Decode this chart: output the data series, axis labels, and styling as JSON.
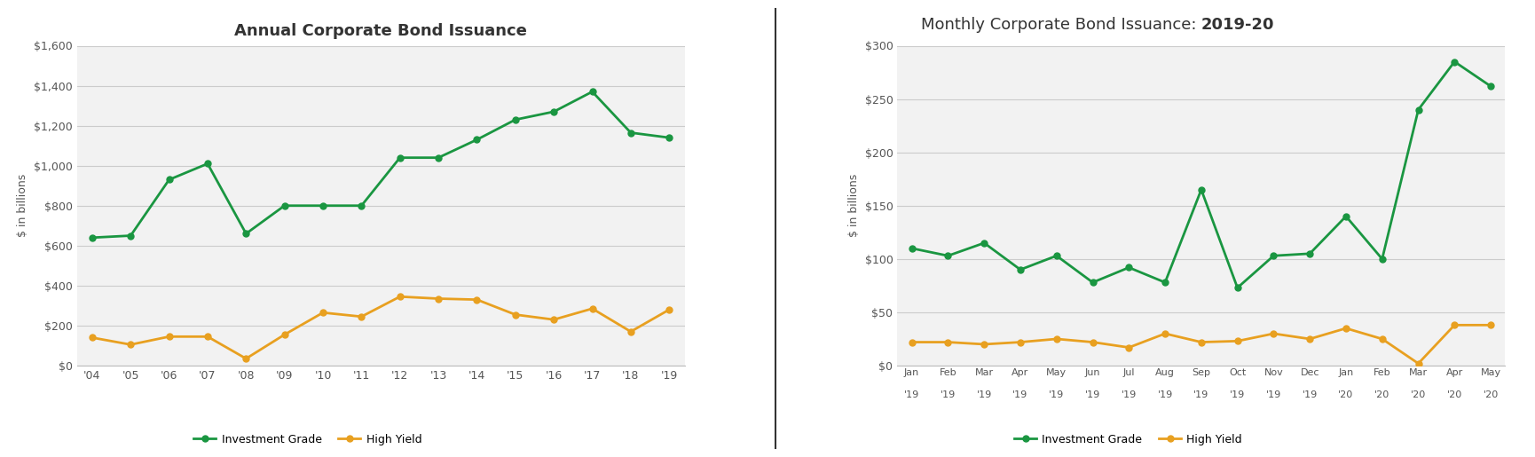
{
  "chart1": {
    "title": "Annual Corporate Bond Issuance",
    "years": [
      "'04",
      "'05",
      "'06",
      "'07",
      "'08",
      "'09",
      "'10",
      "'11",
      "'12",
      "'13",
      "'14",
      "'15",
      "'16",
      "'17",
      "'18",
      "'19"
    ],
    "investment_grade": [
      640,
      650,
      930,
      1010,
      660,
      800,
      800,
      800,
      1040,
      1040,
      1130,
      1230,
      1270,
      1370,
      1165,
      1140
    ],
    "high_yield": [
      140,
      105,
      145,
      145,
      35,
      155,
      265,
      245,
      345,
      335,
      330,
      255,
      230,
      285,
      170,
      280
    ],
    "ylim": [
      0,
      1600
    ],
    "yticks": [
      0,
      200,
      400,
      600,
      800,
      1000,
      1200,
      1400,
      1600
    ],
    "ylabel": "$ in billions"
  },
  "chart2": {
    "title_normal": "Monthly Corporate Bond Issuance: ",
    "title_bold": "2019-20",
    "month_labels": [
      "Jan",
      "Feb",
      "Mar",
      "Apr",
      "May",
      "Jun",
      "Jul",
      "Aug",
      "Sep",
      "Oct",
      "Nov",
      "Dec",
      "Jan",
      "Feb",
      "Mar",
      "Apr",
      "May"
    ],
    "year_labels": [
      "'19",
      "'19",
      "'19",
      "'19",
      "'19",
      "'19",
      "'19",
      "'19",
      "'19",
      "'19",
      "'19",
      "'19",
      "'20",
      "'20",
      "'20",
      "'20",
      "'20"
    ],
    "investment_grade": [
      110,
      103,
      115,
      90,
      103,
      78,
      92,
      78,
      165,
      73,
      103,
      105,
      140,
      100,
      240,
      285,
      262
    ],
    "high_yield": [
      22,
      22,
      20,
      22,
      25,
      22,
      17,
      30,
      22,
      23,
      30,
      25,
      35,
      25,
      2,
      38,
      38
    ],
    "ylim": [
      0,
      300
    ],
    "yticks": [
      0,
      50,
      100,
      150,
      200,
      250,
      300
    ],
    "ylabel": "$ in billions"
  },
  "investment_grade_color": "#1a9641",
  "high_yield_color": "#e8a020",
  "line_width": 2.0,
  "marker": "o",
  "marker_size": 5,
  "background_color": "#ffffff",
  "plot_bg_color": "#f2f2f2",
  "grid_color": "#cccccc",
  "divider_color": "#333333",
  "legend_ig": "Investment Grade",
  "legend_hy": "High Yield",
  "title_fontsize": 13,
  "tick_fontsize": 9,
  "ylabel_fontsize": 9,
  "tick_color": "#555555",
  "spine_color": "#bbbbbb"
}
